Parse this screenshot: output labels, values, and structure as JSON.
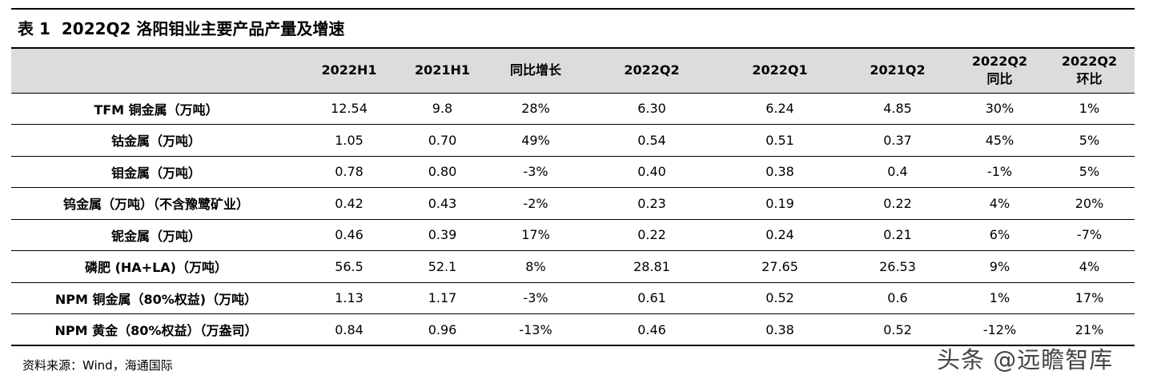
{
  "title": {
    "label": "表 1",
    "text": "2022Q2 洛阳钼业主要产品产量及增速"
  },
  "table": {
    "headers": [
      {
        "line1": "",
        "line2": ""
      },
      {
        "line1": "2022H1",
        "line2": ""
      },
      {
        "line1": "2021H1",
        "line2": ""
      },
      {
        "line1": "同比增长",
        "line2": ""
      },
      {
        "line1": "2022Q2",
        "line2": ""
      },
      {
        "line1": "2022Q1",
        "line2": ""
      },
      {
        "line1": "2021Q2",
        "line2": ""
      },
      {
        "line1": "2022Q2",
        "line2": "同比"
      },
      {
        "line1": "2022Q2",
        "line2": "环比"
      }
    ],
    "rows": [
      [
        "TFM 铜金属（万吨）",
        "12.54",
        "9.8",
        "28%",
        "6.30",
        "6.24",
        "4.85",
        "30%",
        "1%"
      ],
      [
        "钴金属（万吨）",
        "1.05",
        "0.70",
        "49%",
        "0.54",
        "0.51",
        "0.37",
        "45%",
        "5%"
      ],
      [
        "钼金属（万吨）",
        "0.78",
        "0.80",
        "-3%",
        "0.40",
        "0.38",
        "0.4",
        "-1%",
        "5%"
      ],
      [
        "钨金属（万吨）（不含豫鹭矿业）",
        "0.42",
        "0.43",
        "-2%",
        "0.23",
        "0.19",
        "0.22",
        "4%",
        "20%"
      ],
      [
        "铌金属（万吨）",
        "0.46",
        "0.39",
        "17%",
        "0.22",
        "0.24",
        "0.21",
        "6%",
        "-7%"
      ],
      [
        "磷肥 (HA+LA)（万吨）",
        "56.5",
        "52.1",
        "8%",
        "28.81",
        "27.65",
        "26.53",
        "9%",
        "4%"
      ],
      [
        "NPM 铜金属（80%权益)（万吨）",
        "1.13",
        "1.17",
        "-3%",
        "0.61",
        "0.52",
        "0.6",
        "1%",
        "17%"
      ],
      [
        "NPM 黄金（80%权益）（万盎司）",
        "0.84",
        "0.96",
        "-13%",
        "0.46",
        "0.38",
        "0.52",
        "-12%",
        "21%"
      ]
    ]
  },
  "source": "资料来源：Wind，海通国际",
  "watermark": "头条 @远瞻智库"
}
